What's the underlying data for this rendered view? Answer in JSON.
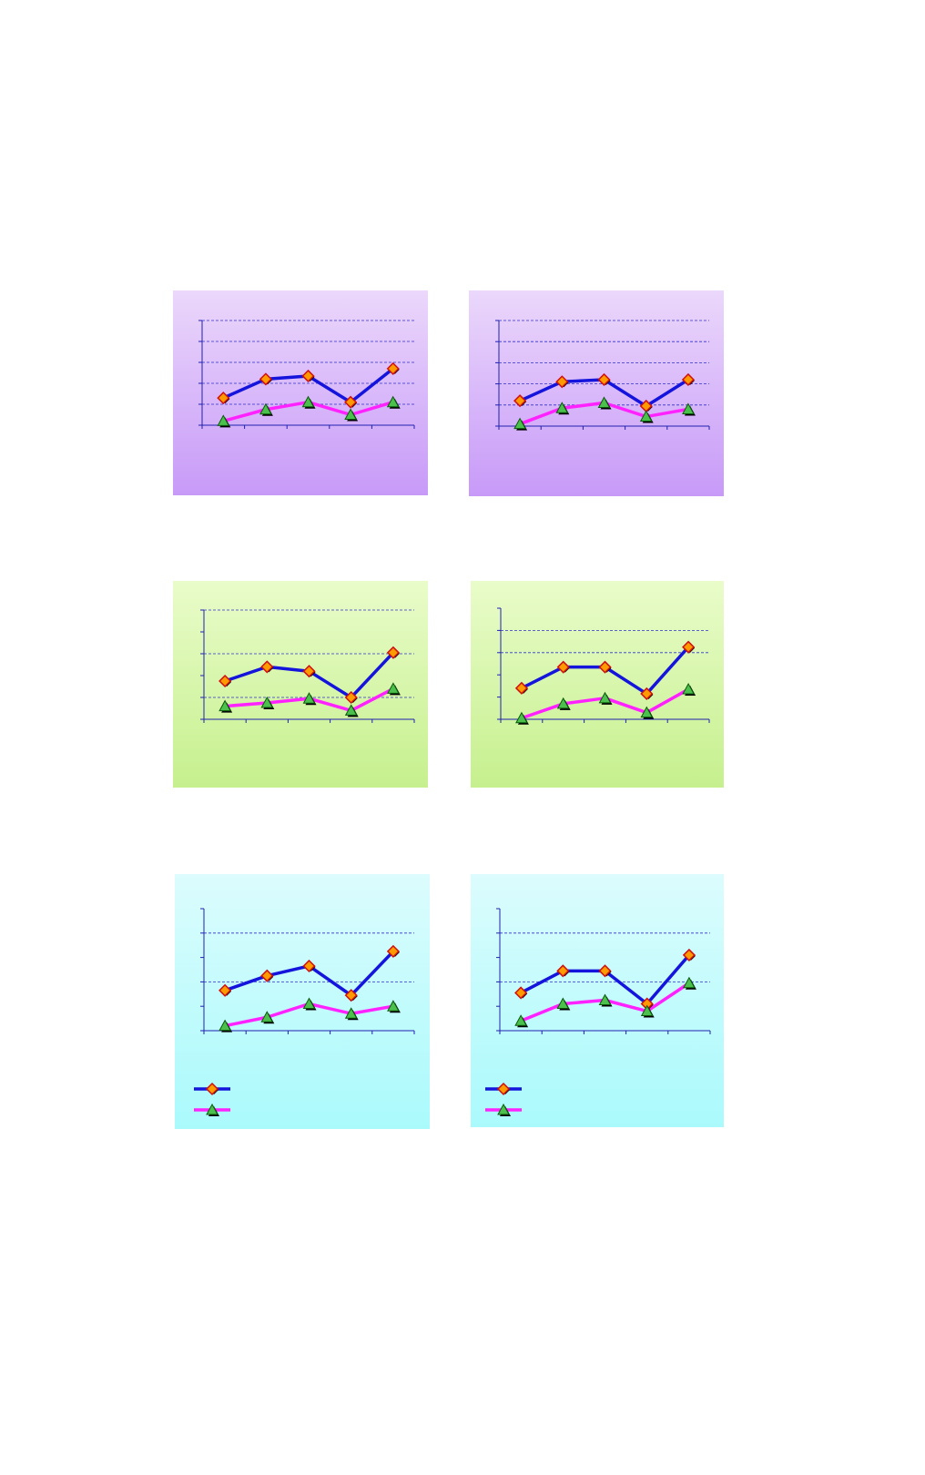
{
  "chart_data": [
    {
      "type": "line",
      "categories": [
        null,
        null,
        null,
        null,
        null
      ],
      "ylim": [
        0,
        5
      ],
      "yticks": [
        0,
        1,
        2,
        3,
        4,
        5
      ],
      "grid_lines": [
        1,
        2,
        3,
        4,
        5
      ],
      "series": [
        {
          "color": "#1414dc",
          "marker": "diamond",
          "values": [
            1.3,
            2.2,
            2.35,
            1.1,
            2.7
          ]
        },
        {
          "color": "#ff22ff",
          "marker": "triangle",
          "values": [
            0.2,
            0.75,
            1.1,
            0.5,
            1.1
          ]
        }
      ]
    },
    {
      "type": "line",
      "categories": [
        null,
        null,
        null,
        null,
        null
      ],
      "ylim": [
        0,
        5
      ],
      "yticks": [
        0,
        1,
        2,
        3,
        4,
        5
      ],
      "grid_lines": [
        1,
        2,
        3,
        4,
        5
      ],
      "series": [
        {
          "color": "#1414dc",
          "marker": "diamond",
          "values": [
            1.2,
            2.1,
            2.2,
            0.95,
            2.2
          ]
        },
        {
          "color": "#ff22ff",
          "marker": "triangle",
          "values": [
            0.1,
            0.85,
            1.1,
            0.45,
            0.8
          ]
        }
      ]
    },
    {
      "type": "line",
      "categories": [
        null,
        null,
        null,
        null,
        null
      ],
      "ylim": [
        0,
        5
      ],
      "yticks": [
        0,
        1,
        2,
        3,
        4,
        5
      ],
      "grid_lines": [
        1,
        3,
        5
      ],
      "series": [
        {
          "color": "#1414dc",
          "marker": "diamond",
          "values": [
            1.75,
            2.4,
            2.2,
            1.0,
            3.05
          ]
        },
        {
          "color": "#ff22ff",
          "marker": "triangle",
          "values": [
            0.6,
            0.75,
            0.95,
            0.4,
            1.4
          ]
        }
      ]
    },
    {
      "type": "line",
      "categories": [
        null,
        null,
        null,
        null,
        null
      ],
      "ylim": [
        0,
        5
      ],
      "yticks": [
        0,
        1,
        2,
        3,
        4,
        5
      ],
      "grid_lines": [
        3,
        4
      ],
      "series": [
        {
          "color": "#1414dc",
          "marker": "diamond",
          "values": [
            1.4,
            2.35,
            2.35,
            1.15,
            3.25
          ]
        },
        {
          "color": "#ff22ff",
          "marker": "triangle",
          "values": [
            0.05,
            0.7,
            0.95,
            0.3,
            1.35
          ]
        }
      ]
    },
    {
      "type": "line",
      "categories": [
        null,
        null,
        null,
        null,
        null
      ],
      "ylim": [
        0,
        5
      ],
      "yticks": [
        0,
        1,
        2,
        3,
        4,
        5
      ],
      "grid_lines": [
        2,
        4
      ],
      "legend": true,
      "series": [
        {
          "color": "#1414dc",
          "marker": "diamond",
          "values": [
            1.65,
            2.25,
            2.65,
            1.45,
            3.25
          ]
        },
        {
          "color": "#ff22ff",
          "marker": "triangle",
          "values": [
            0.2,
            0.55,
            1.1,
            0.7,
            1.0
          ]
        }
      ]
    },
    {
      "type": "line",
      "categories": [
        null,
        null,
        null,
        null,
        null
      ],
      "ylim": [
        0,
        5
      ],
      "yticks": [
        0,
        1,
        2,
        3,
        4,
        5
      ],
      "grid_lines": [
        2,
        4
      ],
      "legend": true,
      "series": [
        {
          "color": "#1414dc",
          "marker": "diamond",
          "values": [
            1.55,
            2.45,
            2.45,
            1.1,
            3.1
          ]
        },
        {
          "color": "#ff22ff",
          "marker": "triangle",
          "values": [
            0.4,
            1.1,
            1.25,
            0.8,
            1.95
          ]
        }
      ]
    }
  ]
}
